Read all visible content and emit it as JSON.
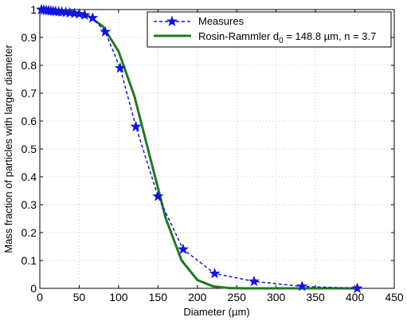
{
  "chart_data": {
    "type": "line",
    "title": "",
    "xlabel": "Diameter (µm)",
    "ylabel": "Mass fraction of particles with larger diameter",
    "xlim": [
      0,
      450
    ],
    "ylim": [
      0,
      1
    ],
    "xticks": [
      0,
      50,
      100,
      150,
      200,
      250,
      300,
      350,
      400,
      450
    ],
    "yticks": [
      0,
      0.1,
      0.2,
      0.3,
      0.4,
      0.5,
      0.6,
      0.7,
      0.8,
      0.9,
      1
    ],
    "xtick_labels": [
      "0",
      "50",
      "100",
      "150",
      "200",
      "250",
      "300",
      "350",
      "400",
      "450"
    ],
    "ytick_labels": [
      "0",
      "0.1",
      "0.2",
      "0.3",
      "0.4",
      "0.5",
      "0.6",
      "0.7",
      "0.8",
      "0.9",
      "1"
    ],
    "grid": true,
    "legend": {
      "placement": "top-right",
      "measures_label": "Measures",
      "model_label_prefix": "Rosin-Rammler d",
      "model_label_sub": "0",
      "model_label_suffix": " = 148.8 µm, n = 3.7"
    },
    "series": [
      {
        "name": "Measures",
        "style": "dashed-star",
        "color": "#1414e0",
        "x": [
          2,
          5,
          8,
          11,
          14,
          17,
          20,
          24,
          28,
          33,
          38,
          44,
          50,
          57,
          67,
          83,
          102,
          122,
          150,
          182,
          222,
          272,
          333,
          403
        ],
        "y": [
          1.0,
          0.998,
          0.997,
          0.996,
          0.995,
          0.994,
          0.993,
          0.992,
          0.991,
          0.99,
          0.988,
          0.986,
          0.984,
          0.98,
          0.97,
          0.92,
          0.79,
          0.58,
          0.33,
          0.14,
          0.053,
          0.025,
          0.007,
          0.0
        ]
      },
      {
        "name": "Rosin-Rammler d0 = 148.8 µm, n = 3.7",
        "style": "solid",
        "color": "#1f7a1f",
        "x": [
          0,
          20,
          40,
          60,
          80,
          100,
          120,
          140,
          160,
          180,
          200,
          220,
          240,
          260,
          280,
          300,
          340,
          380,
          405
        ],
        "y": [
          1.0,
          0.999,
          0.995,
          0.98,
          0.94,
          0.85,
          0.69,
          0.47,
          0.25,
          0.1,
          0.03,
          0.007,
          0.001,
          0.0,
          0.0,
          0.0,
          0.0,
          0.0,
          0.0
        ]
      }
    ]
  }
}
